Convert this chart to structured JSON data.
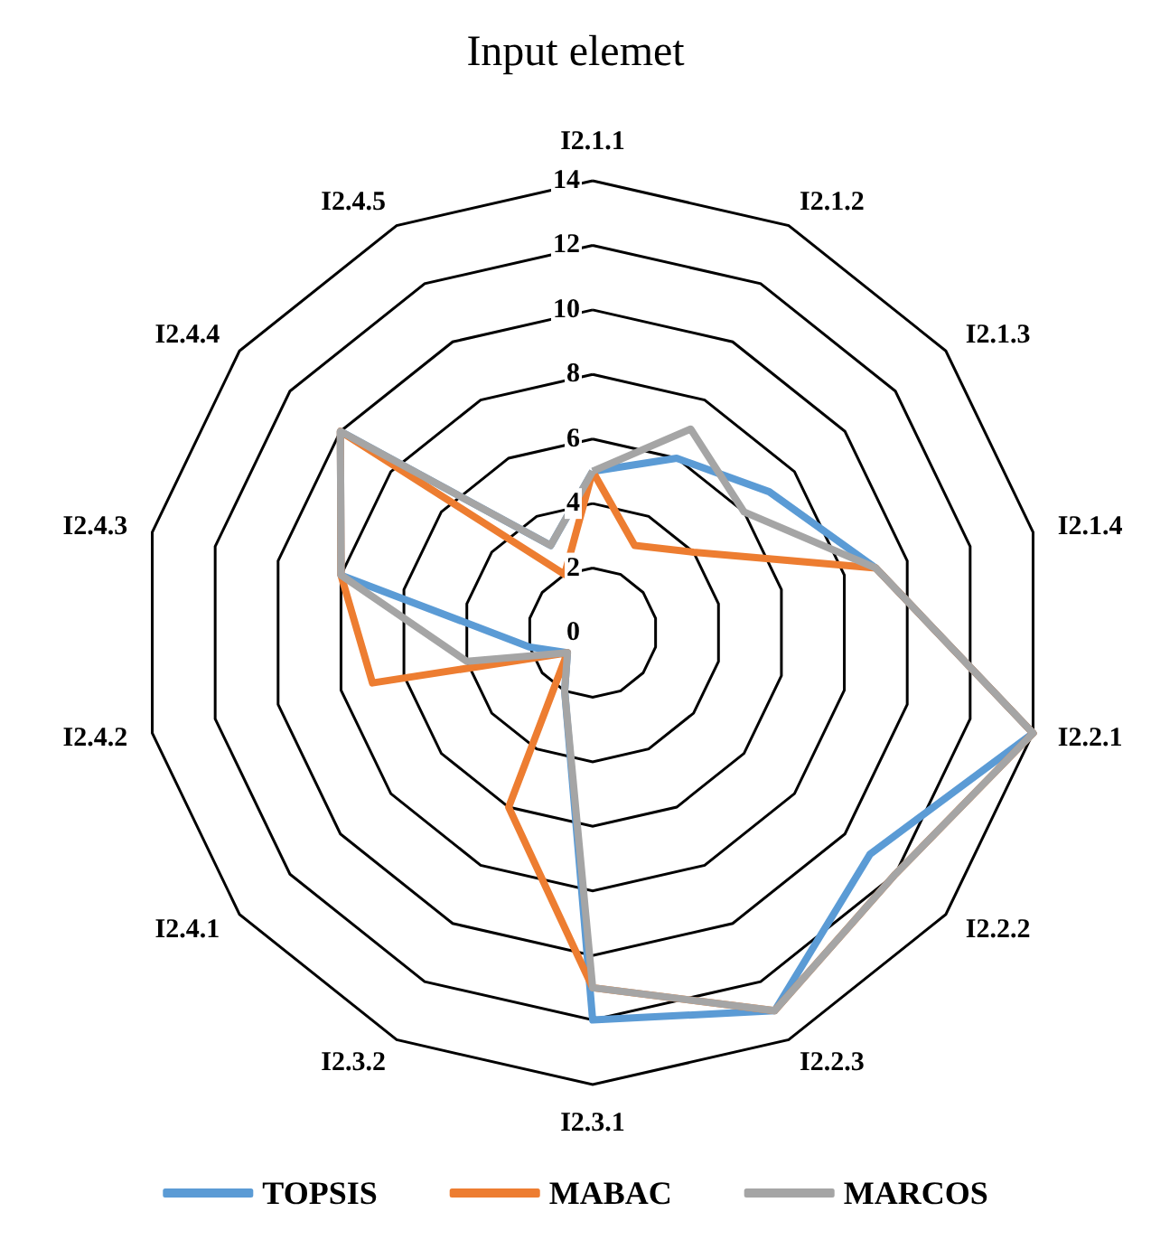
{
  "chart_data": {
    "type": "radar",
    "title": "Input elemet",
    "categories": [
      "I2.1.1",
      "I2.1.2",
      "I2.1.3",
      "I2.1.4",
      "I2.2.1",
      "I2.2.2",
      "I2.2.3",
      "I2.3.1",
      "I2.3.2",
      "I2.4.1",
      "I2.4.2",
      "I2.4.3",
      "I2.4.4",
      "I2.4.5"
    ],
    "series": [
      {
        "name": "TOPSIS",
        "color": "#5b9bd5",
        "values": [
          5,
          6,
          7,
          9,
          14,
          11,
          13,
          12,
          2,
          1,
          2,
          8,
          10,
          3
        ]
      },
      {
        "name": "MABAC",
        "color": "#ed7d31",
        "values": [
          5,
          3,
          4,
          9,
          14,
          12,
          13,
          11,
          6,
          1,
          7,
          8,
          10,
          2
        ]
      },
      {
        "name": "MARCOS",
        "color": "#a5a5a5",
        "values": [
          5,
          7,
          6,
          9,
          14,
          12,
          13,
          11,
          2,
          1,
          4,
          8,
          10,
          3
        ]
      }
    ],
    "ylim": [
      0,
      14
    ],
    "yticks": [
      0,
      2,
      4,
      6,
      8,
      10,
      12,
      14
    ],
    "grid": true,
    "legend": "bottom",
    "marker": "none",
    "line_style": "solid"
  }
}
